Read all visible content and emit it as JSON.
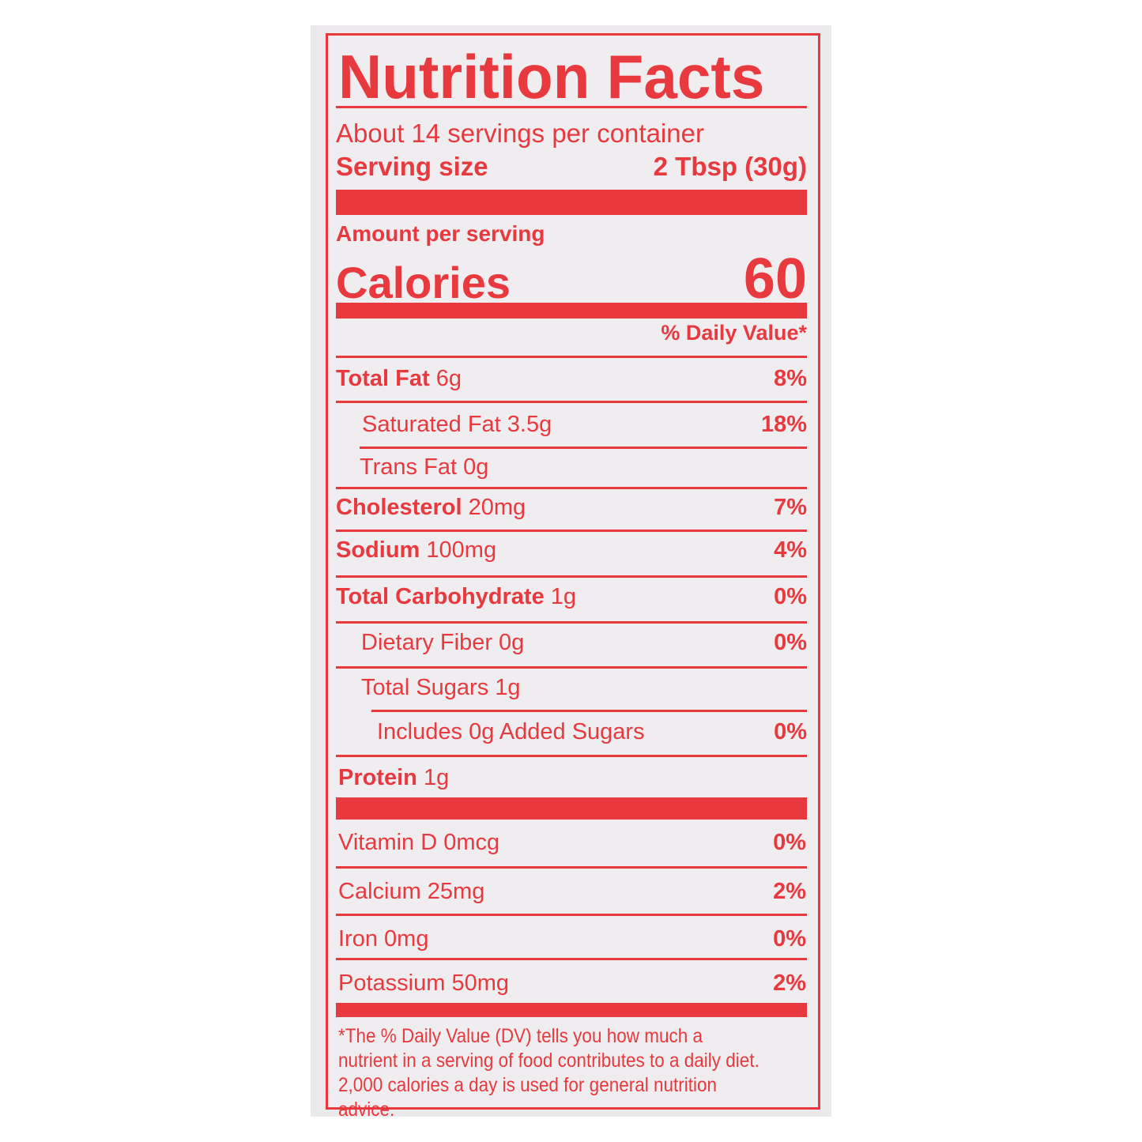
{
  "title": "Nutrition Facts",
  "servings_per_container": "About 14 servings per container",
  "serving_size": {
    "label": "Serving size",
    "value": "2 Tbsp (30g)"
  },
  "amount_per_serving": "Amount per serving",
  "calories": {
    "label": "Calories",
    "value": "60"
  },
  "daily_value_header": "% Daily Value*",
  "nutrients": [
    {
      "name": "Total Fat",
      "amount": "6g",
      "dv": "8%"
    },
    {
      "name": "Saturated Fat 3.5g",
      "amount": "",
      "dv": "18%"
    },
    {
      "name": "Trans Fat 0g",
      "amount": "",
      "dv": ""
    },
    {
      "name": "Cholesterol",
      "amount": "20mg",
      "dv": "7%"
    },
    {
      "name": "Sodium",
      "amount": "100mg",
      "dv": "4%"
    },
    {
      "name": "Total Carbohydrate",
      "amount": "1g",
      "dv": "0%"
    },
    {
      "name": "Dietary Fiber 0g",
      "amount": "",
      "dv": "0%"
    },
    {
      "name": "Total Sugars 1g",
      "amount": "",
      "dv": ""
    },
    {
      "name": "Includes 0g Added Sugars",
      "amount": "",
      "dv": "0%"
    },
    {
      "name": "Protein",
      "amount": "1g",
      "dv": ""
    }
  ],
  "vitamins": [
    {
      "name": "Vitamin D 0mcg",
      "dv": "0%"
    },
    {
      "name": "Calcium 25mg",
      "dv": "2%"
    },
    {
      "name": "Iron 0mg",
      "dv": "0%"
    },
    {
      "name": "Potassium 50mg",
      "dv": "2%"
    }
  ],
  "footnote": "*The % Daily Value (DV) tells you how much a nutrient in a serving of food contributes to a daily diet. 2,000 calories a day is used for general nutrition advice.",
  "colors": {
    "ink": "#e8393f",
    "background": "#efedef"
  }
}
